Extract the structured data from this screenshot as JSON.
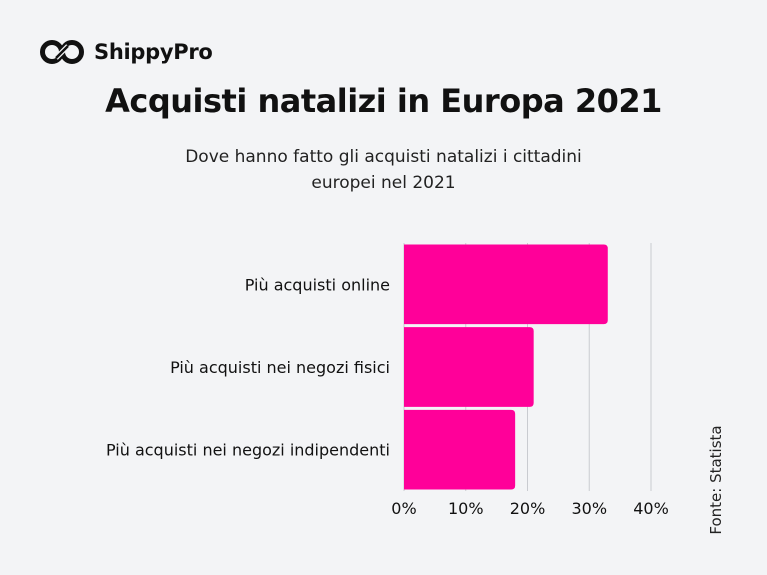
{
  "brand": {
    "name": "ShippyPro",
    "logo_icon": "infinity-link-icon"
  },
  "chart_data": {
    "type": "bar",
    "orientation": "horizontal",
    "title": "Acquisti natalizi in Europa 2021",
    "subtitle": "Dove hanno fatto gli acquisti natalizi i cittadini europei nel 2021",
    "categories": [
      "Più acquisti online",
      "Più acquisti nei negozi fisici",
      "Più acquisti nei negozi indipendenti"
    ],
    "values": [
      33,
      21,
      18
    ],
    "xlim": [
      0,
      40
    ],
    "x_ticks": [
      0,
      10,
      20,
      30,
      40
    ],
    "x_tick_labels": [
      "0%",
      "10%",
      "20%",
      "30%",
      "40%"
    ],
    "xlabel": "",
    "ylabel": "",
    "grid": true,
    "bar_color": "#ff0099",
    "source": "Fonte: Statista"
  }
}
